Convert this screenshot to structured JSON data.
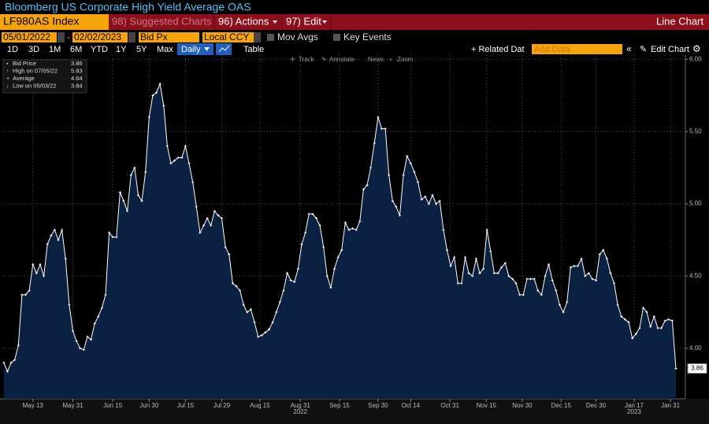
{
  "title": "Bloomberg US Corporate High Yield Average OAS",
  "ticker": "LF980AS Index",
  "menu": [
    "98) Suggested Charts",
    "96) Actions",
    "97) Edit"
  ],
  "view": "Line Chart",
  "start_date": "05/01/2022",
  "end_date": "02/02/2023",
  "field": "Bid Px",
  "currency": "Local CCY",
  "options": [
    "Mov Avgs",
    "Key Events"
  ],
  "ranges": [
    "1D",
    "3D",
    "1M",
    "6M",
    "YTD",
    "1Y",
    "5Y",
    "Max"
  ],
  "frequency": "Daily",
  "table": "Table",
  "related": "+ Related Dat",
  "add_data": "Add Data",
  "edit_chart": "Edit Chart",
  "tools": [
    "Track",
    "Annotate",
    "News",
    "Zoom"
  ],
  "chart_data": {
    "type": "line",
    "series": [
      {
        "name": "Bid Price",
        "color": "#ffffff",
        "fill": "#0b2142",
        "values": [
          3.9,
          3.84,
          3.9,
          3.92,
          4.02,
          4.37,
          4.37,
          4.4,
          4.58,
          4.52,
          4.58,
          4.5,
          4.72,
          4.78,
          4.82,
          4.75,
          4.82,
          4.62,
          4.3,
          4.12,
          4.05,
          4.0,
          3.99,
          4.08,
          4.06,
          4.17,
          4.22,
          4.28,
          4.37,
          4.8,
          4.77,
          4.77,
          5.08,
          5.02,
          4.95,
          5.2,
          5.25,
          5.06,
          5.02,
          5.22,
          5.6,
          5.75,
          5.77,
          5.83,
          5.68,
          5.4,
          5.28,
          5.3,
          5.32,
          5.32,
          5.4,
          5.28,
          5.15,
          4.98,
          4.8,
          4.85,
          4.9,
          4.85,
          4.95,
          4.92,
          4.9,
          4.7,
          4.65,
          4.45,
          4.43,
          4.4,
          4.3,
          4.25,
          4.27,
          4.18,
          4.08,
          4.09,
          4.11,
          4.13,
          4.18,
          4.25,
          4.32,
          4.4,
          4.52,
          4.47,
          4.46,
          4.55,
          4.72,
          4.8,
          4.93,
          4.93,
          4.9,
          4.85,
          4.7,
          4.5,
          4.42,
          4.55,
          4.63,
          4.68,
          4.87,
          4.82,
          4.83,
          4.82,
          4.88,
          5.1,
          5.13,
          5.25,
          5.42,
          5.6,
          5.52,
          5.52,
          5.2,
          5.02,
          4.98,
          4.92,
          5.2,
          5.33,
          5.28,
          5.22,
          5.15,
          5.03,
          5.05,
          5.0,
          5.06,
          5.0,
          5.02,
          4.82,
          4.68,
          4.57,
          4.63,
          4.45,
          4.45,
          4.63,
          4.52,
          4.5,
          4.62,
          4.52,
          4.55,
          4.82,
          4.67,
          4.52,
          4.52,
          4.56,
          4.59,
          4.5,
          4.48,
          4.45,
          4.37,
          4.37,
          4.48,
          4.48,
          4.48,
          4.4,
          4.37,
          4.5,
          4.58,
          4.47,
          4.4,
          4.3,
          4.25,
          4.32,
          4.56,
          4.57,
          4.57,
          4.62,
          4.5,
          4.52,
          4.48,
          4.47,
          4.65,
          4.68,
          4.62,
          4.52,
          4.45,
          4.3,
          4.22,
          4.2,
          4.18,
          4.07,
          4.1,
          4.14,
          4.28,
          4.25,
          4.15,
          4.22,
          4.14,
          4.14,
          4.19,
          4.2,
          4.19,
          3.86
        ]
      }
    ],
    "legend": [
      {
        "label": "Bid Price",
        "value": 3.86
      },
      {
        "label": "High on 07/05/22",
        "value": 5.83
      },
      {
        "label": "Average",
        "value": 4.64
      },
      {
        "label": "Low on 05/03/22",
        "value": 3.84
      }
    ],
    "xlim": [
      -0.4,
      187.6
    ],
    "xticks": [
      {
        "value": 8,
        "label": "May 13"
      },
      {
        "value": 19,
        "label": "May 31"
      },
      {
        "value": 30,
        "label": "Jun 15"
      },
      {
        "value": 40,
        "label": "Jun 30"
      },
      {
        "value": 50,
        "label": "Jul 15"
      },
      {
        "value": 60,
        "label": "Jul 29"
      },
      {
        "value": 70.5,
        "label": "Aug 15"
      },
      {
        "value": 81.6,
        "label": "Aug 31"
      },
      {
        "value": 92.4,
        "label": "Sep 15"
      },
      {
        "value": 103,
        "label": "Sep 30"
      },
      {
        "value": 112,
        "label": "Oct 14"
      },
      {
        "value": 122.8,
        "label": "Oct 31"
      },
      {
        "value": 132.8,
        "label": "Nov 15"
      },
      {
        "value": 142.7,
        "label": "Nov 30"
      },
      {
        "value": 153.4,
        "label": "Dec 15"
      },
      {
        "value": 163,
        "label": "Dec 30"
      },
      {
        "value": 173.5,
        "label": "Jan 17"
      },
      {
        "value": 183.5,
        "label": "Jan 31"
      }
    ],
    "year_labels": [
      {
        "value": 81.6,
        "label": "2022"
      },
      {
        "value": 173.5,
        "label": "2023"
      }
    ],
    "ylim": [
      3.65,
      6.03
    ],
    "yticks": [
      {
        "value": 4,
        "label": "4.00"
      },
      {
        "value": 4.5,
        "label": "4.50"
      },
      {
        "value": 5,
        "label": "5.00"
      },
      {
        "value": 5.5,
        "label": "5.50"
      },
      {
        "value": 6,
        "label": "6.00"
      }
    ],
    "grid": true
  }
}
